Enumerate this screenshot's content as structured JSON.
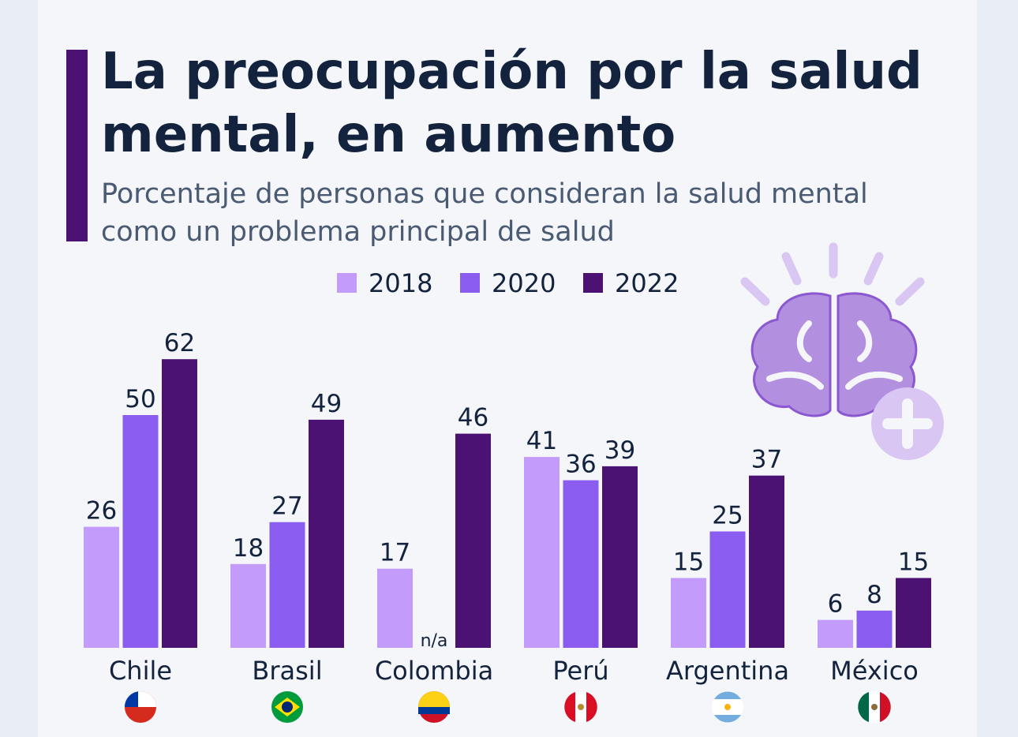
{
  "chart_data": {
    "type": "bar",
    "title": [
      "La preocupación por la salud",
      "mental, en aumento"
    ],
    "subtitle": [
      "Porcentaje de personas que consideran la salud mental",
      "como un problema principal de salud"
    ],
    "categories": [
      "Chile",
      "Brasil",
      "Colombia",
      "Perú",
      "Argentina",
      "México"
    ],
    "series": [
      {
        "name": "2018",
        "color": "#c39bfb",
        "values": [
          26,
          18,
          17,
          41,
          15,
          6
        ]
      },
      {
        "name": "2020",
        "color": "#8a5cf0",
        "values": [
          50,
          27,
          null,
          36,
          25,
          8
        ],
        "value_labels": [
          "50",
          "27",
          "n/a",
          "36",
          "25",
          "8"
        ]
      },
      {
        "name": "2022",
        "color": "#4b1273",
        "values": [
          62,
          49,
          46,
          39,
          37,
          15
        ]
      }
    ]
  }
}
